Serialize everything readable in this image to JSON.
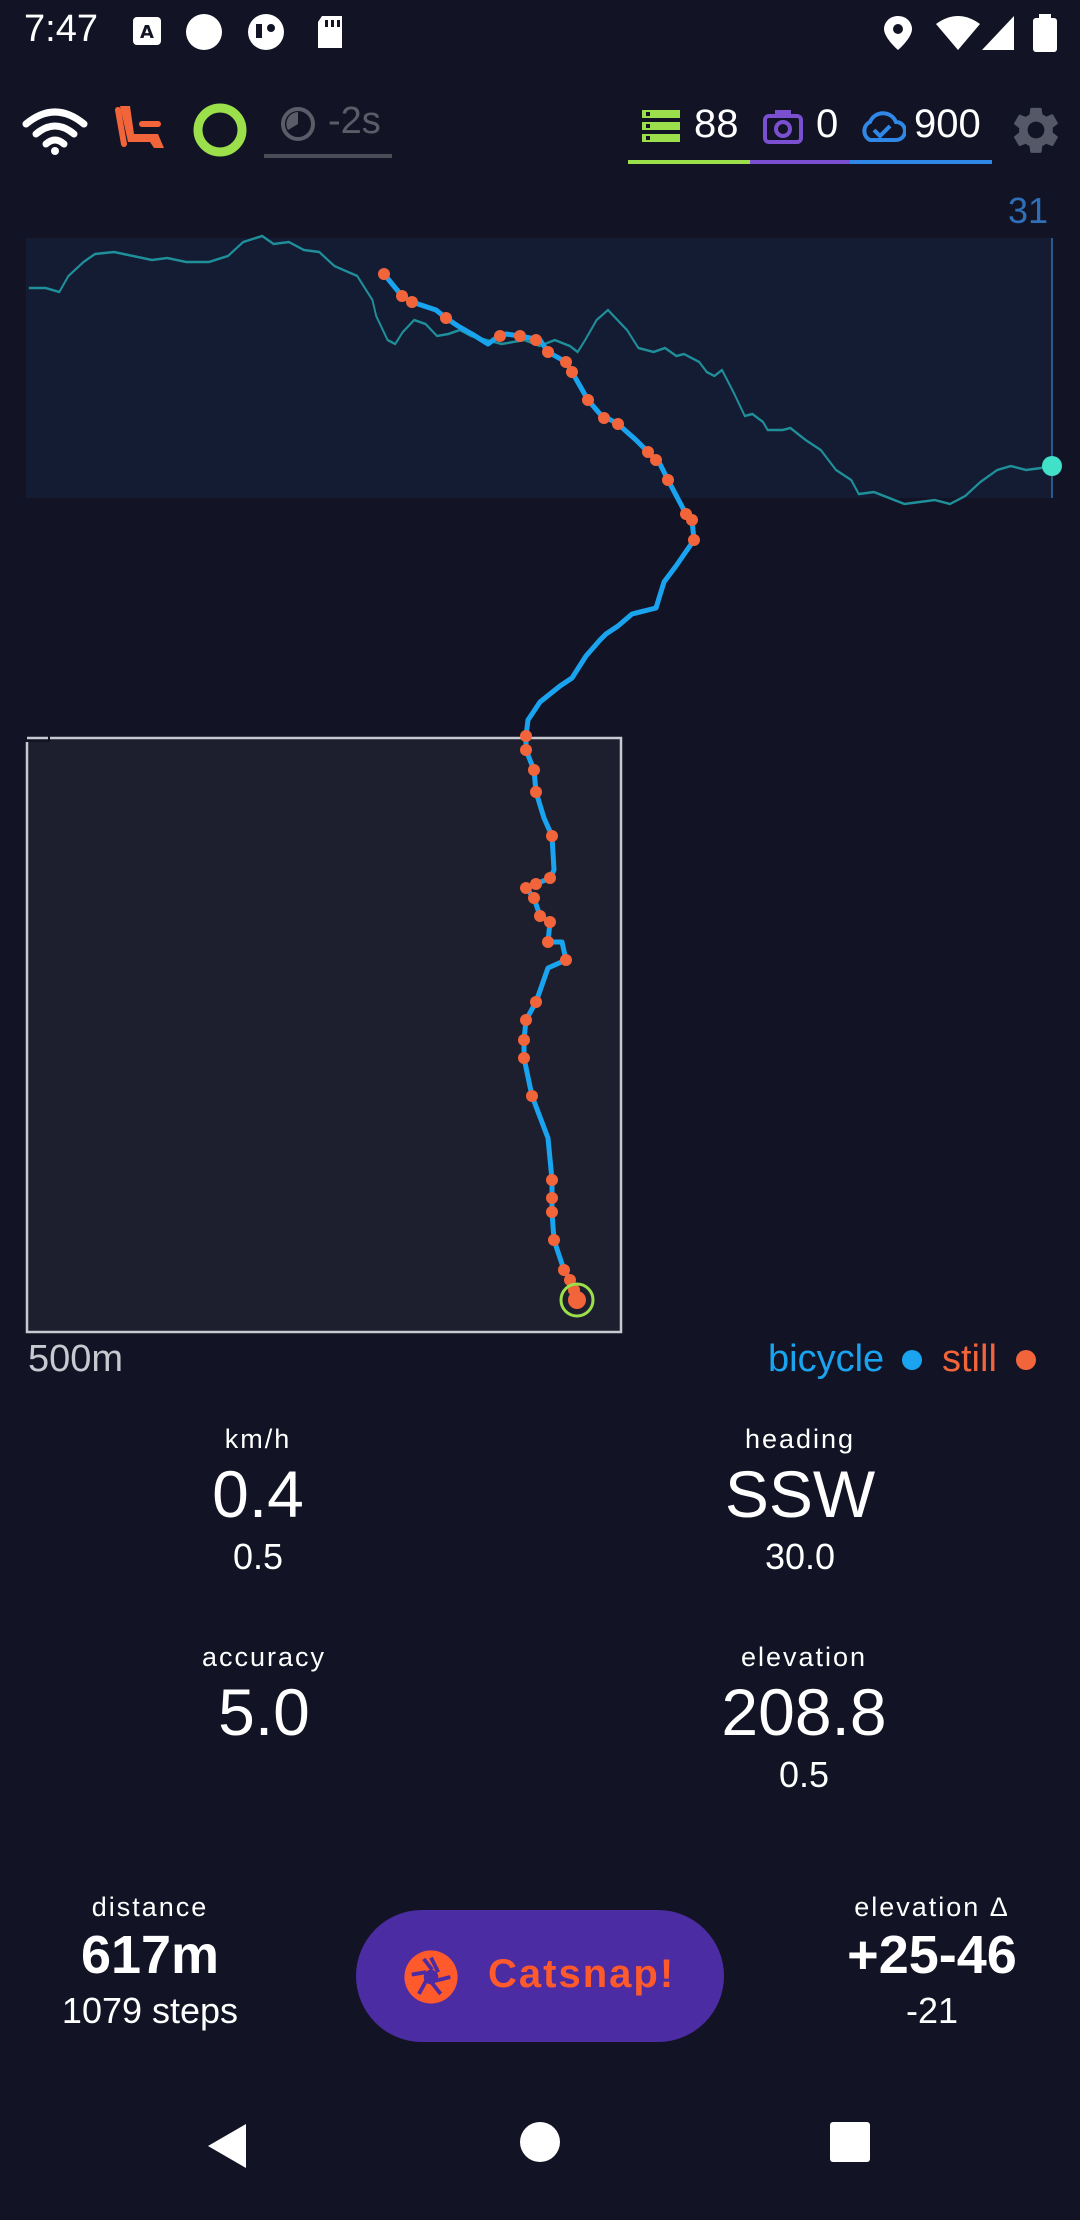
{
  "status_bar": {
    "time": "7:47"
  },
  "top_bar": {
    "lag_label": "-2s",
    "counters": {
      "tracks": "88",
      "photos": "0",
      "uploads": "900"
    }
  },
  "chart": {
    "elevation_top_label": "31",
    "scale_label": "500m",
    "legend": [
      {
        "label": "bicycle",
        "color": "#1aa3ef"
      },
      {
        "label": "still",
        "color": "#f2643a"
      }
    ]
  },
  "stats": {
    "speed": {
      "label": "km/h",
      "value": "0.4",
      "sub": "0.5"
    },
    "heading": {
      "label": "heading",
      "value": "SSW",
      "sub": "30.0"
    },
    "accuracy": {
      "label": "accuracy",
      "value": "5.0"
    },
    "elevation": {
      "label": "elevation",
      "value": "208.8",
      "sub": "0.5"
    },
    "distance": {
      "label": "distance",
      "value": "617m",
      "sub": "1079 steps"
    },
    "elevation_delta": {
      "label": "elevation Δ",
      "value": "+25-46",
      "sub": "-21"
    }
  },
  "catsnap": {
    "label": "Catsnap!"
  },
  "colors": {
    "background": "#121425",
    "bicycle": "#1aa3ef",
    "still": "#f2643a",
    "elevation_line": "#1f8f9a",
    "tracks_accent": "#9be04a",
    "photos_accent": "#7a4fd0",
    "uploads_accent": "#2f88e8",
    "catsnap_bg": "#4b2ca3"
  }
}
